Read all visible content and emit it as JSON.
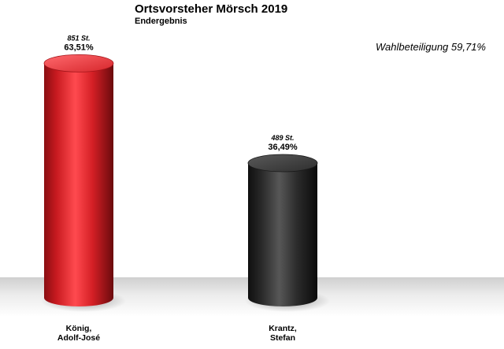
{
  "chart_data": {
    "type": "bar",
    "title": "Ortsvorsteher Mörsch 2019",
    "subtitle": "Endergebnis",
    "annotation": "Wahlbeteiligung 59,71%",
    "categories": [
      [
        "König,",
        "Adolf-José"
      ],
      [
        "Krantz,",
        "Stefan"
      ]
    ],
    "series": [
      {
        "values": [
          63.51,
          36.49
        ],
        "value_labels": [
          "63,51%",
          "36,49%"
        ],
        "vote_labels": [
          "851 St.",
          "489 St."
        ]
      }
    ],
    "colors": [
      "#e0242a",
      "#2b2b2b"
    ],
    "ylim": [
      0,
      70
    ],
    "grid": false,
    "style": "3d-cylinder"
  }
}
